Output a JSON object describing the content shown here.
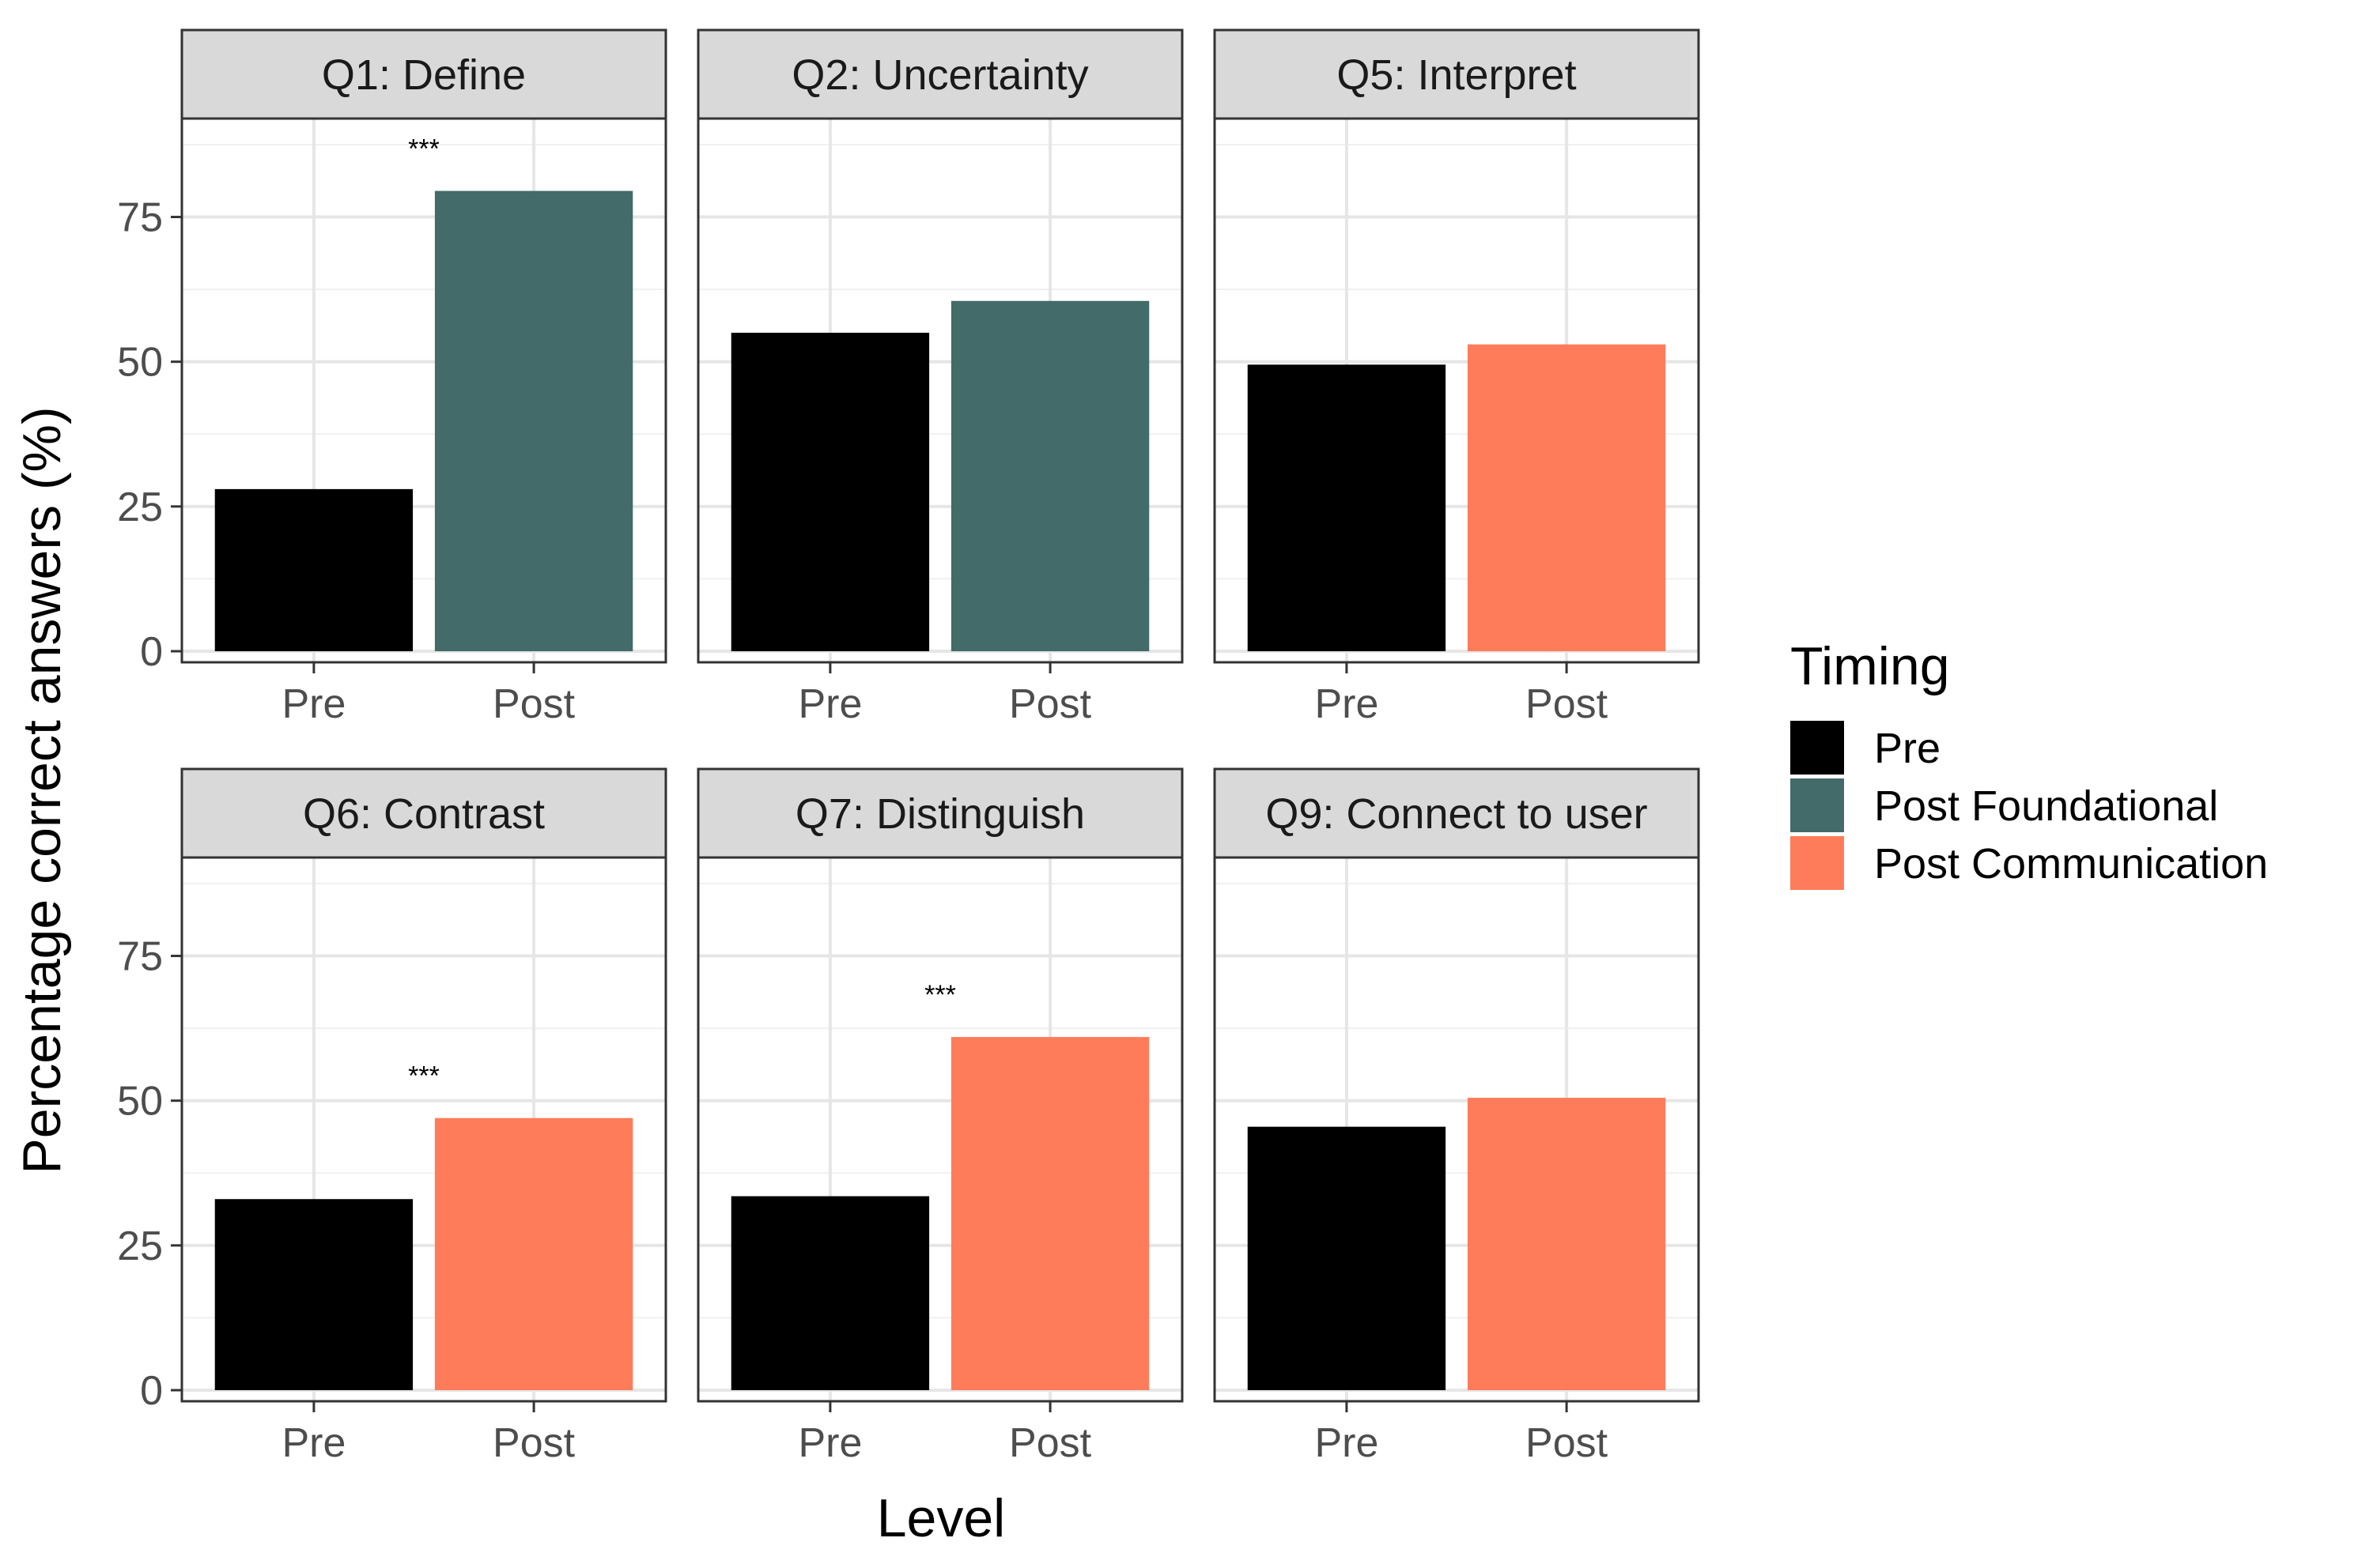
{
  "chart_data": {
    "type": "bar",
    "xlabel": "Level",
    "ylabel": "Percentage correct answers (%)",
    "ylim": [
      0,
      92
    ],
    "yticks": [
      0,
      25,
      50,
      75
    ],
    "grid": true,
    "categories": [
      "Pre",
      "Post"
    ],
    "legend": {
      "title": "Timing",
      "position": "right",
      "entries": [
        {
          "label": "Pre",
          "color": "#000000"
        },
        {
          "label": "Post Foundational",
          "color": "#426b69"
        },
        {
          "label": "Post Communication",
          "color": "#ff7c5a"
        }
      ]
    },
    "panels": [
      {
        "title": "Q1: Define",
        "values": [
          28,
          79.5
        ],
        "timing": [
          "Pre",
          "Post Foundational"
        ],
        "significance": "***"
      },
      {
        "title": "Q2: Uncertainty",
        "values": [
          55,
          60.5
        ],
        "timing": [
          "Pre",
          "Post Foundational"
        ],
        "significance": ""
      },
      {
        "title": "Q5: Interpret",
        "values": [
          49.5,
          53
        ],
        "timing": [
          "Pre",
          "Post Communication"
        ],
        "significance": ""
      },
      {
        "title": "Q6: Contrast",
        "values": [
          33,
          47
        ],
        "timing": [
          "Pre",
          "Post Communication"
        ],
        "significance": "***"
      },
      {
        "title": "Q7: Distinguish",
        "values": [
          33.5,
          61
        ],
        "timing": [
          "Pre",
          "Post Communication"
        ],
        "significance": "***"
      },
      {
        "title": "Q9: Connect to user",
        "values": [
          45.5,
          50.5
        ],
        "timing": [
          "Pre",
          "Post Communication"
        ],
        "significance": ""
      }
    ]
  }
}
